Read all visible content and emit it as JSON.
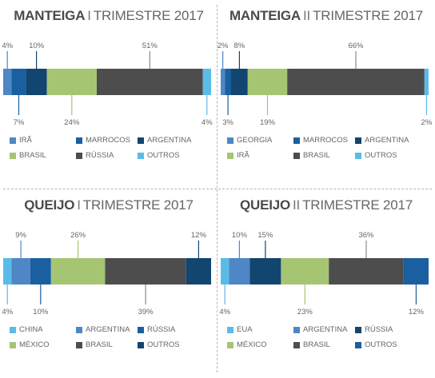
{
  "colors": {
    "light_blue": "#5bbbe8",
    "mid_blue": "#4f86c6",
    "blue": "#1a5fa0",
    "navy": "#12456f",
    "green": "#a6c573",
    "dark": "#4d4d4d",
    "leader": "#5a95cf"
  },
  "chart_data": [
    {
      "type": "bar",
      "title": "MANTEIGA I TRIMESTRE 2017",
      "product": "MANTEIGA",
      "period": "TRIMESTRE 2017",
      "period_prefix": "I",
      "series": [
        {
          "name": "IRÃ",
          "value": 4,
          "label": "4%",
          "color": "#4f86c6",
          "label_pos": "top"
        },
        {
          "name": "MARROCOS",
          "value": 7,
          "label": "7%",
          "color": "#1a5fa0",
          "label_pos": "bottom"
        },
        {
          "name": "ARGENTINA",
          "value": 10,
          "label": "10%",
          "color": "#12456f",
          "label_pos": "top"
        },
        {
          "name": "BRASIL",
          "value": 24,
          "label": "24%",
          "color": "#a6c573",
          "label_pos": "bottom"
        },
        {
          "name": "RÚSSIA",
          "value": 51,
          "label": "51%",
          "color": "#4d4d4d",
          "label_pos": "top"
        },
        {
          "name": "OUTROS",
          "value": 4,
          "label": "4%",
          "color": "#5bbbe8",
          "label_pos": "bottom"
        }
      ]
    },
    {
      "type": "bar",
      "title": "MANTEIGA II TRIMESTRE 2017",
      "product": "MANTEIGA",
      "period": "TRIMESTRE 2017",
      "period_prefix": "II",
      "series": [
        {
          "name": "GEORGIA",
          "value": 2,
          "label": "2%",
          "color": "#4f86c6",
          "label_pos": "top"
        },
        {
          "name": "MARROCOS",
          "value": 3,
          "label": "3%",
          "color": "#1a5fa0",
          "label_pos": "bottom"
        },
        {
          "name": "ARGENTINA",
          "value": 8,
          "label": "8%",
          "color": "#12456f",
          "label_pos": "top"
        },
        {
          "name": "IRÃ",
          "value": 19,
          "label": "19%",
          "color": "#a6c573",
          "label_pos": "bottom"
        },
        {
          "name": "BRASIL",
          "value": 66,
          "label": "66%",
          "color": "#4d4d4d",
          "label_pos": "top"
        },
        {
          "name": "OUTROS",
          "value": 2,
          "label": "2%",
          "color": "#5bbbe8",
          "label_pos": "bottom"
        }
      ]
    },
    {
      "type": "bar",
      "title": "QUEIJO I TRIMESTRE 2017",
      "product": "QUEIJO",
      "period": "TRIMESTRE 2017",
      "period_prefix": "I",
      "series": [
        {
          "name": "CHINA",
          "value": 4,
          "label": "4%",
          "color": "#5bbbe8",
          "label_pos": "bottom"
        },
        {
          "name": "ARGENTINA",
          "value": 9,
          "label": "9%",
          "color": "#4f86c6",
          "label_pos": "top"
        },
        {
          "name": "RÚSSIA",
          "value": 10,
          "label": "10%",
          "color": "#1a5fa0",
          "label_pos": "bottom"
        },
        {
          "name": "MÉXICO",
          "value": 26,
          "label": "26%",
          "color": "#a6c573",
          "label_pos": "top"
        },
        {
          "name": "BRASIL",
          "value": 39,
          "label": "39%",
          "color": "#4d4d4d",
          "label_pos": "bottom"
        },
        {
          "name": "OUTROS",
          "value": 12,
          "label": "12%",
          "color": "#12456f",
          "label_pos": "top"
        }
      ]
    },
    {
      "type": "bar",
      "title": "QUEIJO II TRIMESTRE 2017",
      "product": "QUEIJO",
      "period": "TRIMESTRE 2017",
      "period_prefix": "II",
      "series": [
        {
          "name": "EUA",
          "value": 4,
          "label": "4%",
          "color": "#5bbbe8",
          "label_pos": "bottom"
        },
        {
          "name": "ARGENTINA",
          "value": 10,
          "label": "10%",
          "color": "#4f86c6",
          "label_pos": "top"
        },
        {
          "name": "RÚSSIA",
          "value": 15,
          "label": "15%",
          "color": "#12456f",
          "label_pos": "top"
        },
        {
          "name": "MÉXICO",
          "value": 23,
          "label": "23%",
          "color": "#a6c573",
          "label_pos": "bottom"
        },
        {
          "name": "BRASIL",
          "value": 36,
          "label": "36%",
          "color": "#4d4d4d",
          "label_pos": "top"
        },
        {
          "name": "OUTROS",
          "value": 12,
          "label": "12%",
          "color": "#1a5fa0",
          "label_pos": "bottom"
        }
      ]
    }
  ]
}
